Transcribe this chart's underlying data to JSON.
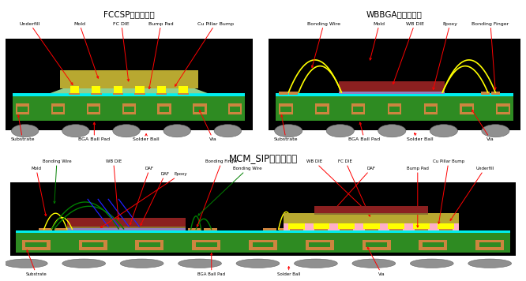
{
  "title_fccsp": "FCCSP封装示意图",
  "title_wbbga": "WBBGA封装示意图",
  "title_mcm": "MCM_SIP封装示意图",
  "black": "#000000",
  "green_sub": "#2E8B22",
  "trace_orange": "#CD853F",
  "cyan": "#00EFEF",
  "olive": "#B8A830",
  "lt_green": "#90D090",
  "yellow": "#FFFF00",
  "dark_red": "#8B2020",
  "ball_gray": "#909090",
  "purple_epoxy": "#9080C0",
  "pink": "#FFB0C8",
  "red_arrow": "#FF0000",
  "green_wire": "#00BB00",
  "blue_wire": "#2020FF",
  "white": "#FFFFFF"
}
